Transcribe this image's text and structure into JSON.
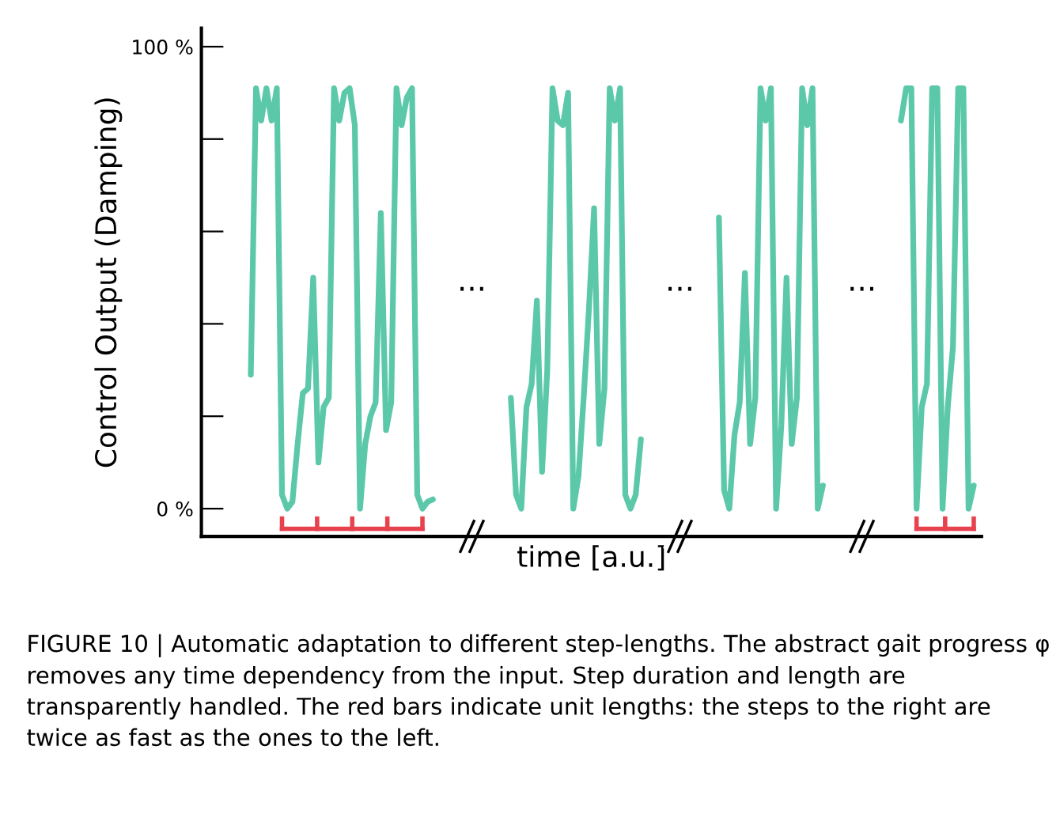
{
  "chart_data": {
    "type": "line",
    "xlabel": "time [a.u.]",
    "ylabel": "Control Output (Damping)",
    "categories": [
      null,
      null,
      null,
      null,
      null,
      null,
      null,
      null,
      null,
      null,
      null,
      null,
      null,
      null,
      null,
      null,
      null,
      null,
      null,
      null,
      null,
      null,
      null,
      null,
      null,
      null,
      null,
      null,
      null,
      null,
      null,
      null,
      null,
      null,
      null,
      null,
      null,
      null,
      null,
      null,
      null,
      null,
      null,
      null,
      null,
      null,
      null,
      null,
      null,
      null,
      null,
      null,
      null,
      null,
      null,
      null,
      null,
      null,
      null,
      null,
      null,
      null,
      null,
      null,
      null,
      null,
      null,
      null,
      null,
      null,
      null,
      null,
      null,
      null,
      null,
      null,
      null,
      null,
      null,
      null,
      null,
      null,
      null,
      null,
      null,
      null,
      null,
      null,
      null,
      null,
      null,
      null,
      null,
      null,
      null,
      null,
      null,
      null,
      null,
      null,
      null,
      null,
      null,
      null,
      null,
      null,
      null,
      null,
      null,
      null,
      null,
      null,
      null,
      null,
      null,
      null,
      null,
      null,
      null,
      null,
      null,
      null,
      null,
      null,
      null,
      null,
      null,
      null,
      null,
      null,
      null,
      null,
      null,
      null,
      null,
      null,
      null,
      null,
      null,
      null,
      null,
      null,
      null,
      null,
      null,
      null,
      null,
      null,
      null,
      null
    ],
    "ylim": [
      -6,
      104
    ],
    "yticks": [
      {
        "value": 0,
        "label": "0 %"
      },
      {
        "value": 20,
        "label": null
      },
      {
        "value": 40,
        "label": null
      },
      {
        "value": 60,
        "label": null
      },
      {
        "value": 80,
        "label": null
      },
      {
        "value": 100,
        "label": "100 %"
      }
    ],
    "tick_labels": "y",
    "grid": false,
    "legend": false,
    "marker": "none",
    "line_style": "solid",
    "series": [
      {
        "color": "#5cc8aa",
        "values": [
          null,
          null,
          null,
          null,
          null,
          null,
          null,
          null,
          null,
          29,
          91,
          84,
          91,
          84,
          91,
          3,
          0,
          1.5,
          14,
          25,
          26,
          50,
          10,
          22,
          24,
          91,
          84,
          90,
          91,
          83,
          0,
          14,
          20,
          23,
          64,
          17,
          23,
          91,
          83,
          89,
          91,
          3,
          0,
          1.5,
          2,
          null,
          null,
          null,
          null,
          null,
          null,
          null,
          null,
          null,
          null,
          null,
          null,
          null,
          null,
          null,
          null,
          null,
          null,
          null,
          null,
          null,
          null,
          null,
          null,
          null,
          null,
          null,
          null,
          null,
          null,
          null,
          null,
          null,
          null,
          null,
          null,
          null,
          null,
          null,
          null,
          null,
          null,
          null,
          null,
          null,
          null,
          null,
          null,
          null,
          null,
          null,
          null,
          null,
          null,
          null,
          null,
          null,
          null,
          null,
          null,
          null,
          null,
          null,
          null,
          null,
          null,
          null,
          null,
          null,
          null,
          null,
          null,
          null,
          null,
          null,
          null,
          null,
          null,
          null,
          null,
          null,
          null,
          null,
          null,
          null,
          null,
          null,
          null,
          null,
          null,
          null,
          null,
          null,
          null,
          null,
          null,
          null,
          null,
          null,
          null,
          null,
          null,
          null,
          null,
          null
        ]
      },
      {
        "color": "#5cc8aa",
        "values": [
          null,
          null,
          null,
          null,
          null,
          null,
          null,
          null,
          null,
          null,
          null,
          null,
          null,
          null,
          null,
          null,
          null,
          null,
          null,
          null,
          null,
          null,
          null,
          null,
          null,
          null,
          null,
          null,
          null,
          null,
          null,
          null,
          null,
          null,
          null,
          null,
          null,
          null,
          null,
          null,
          null,
          null,
          null,
          null,
          null,
          null,
          null,
          null,
          null,
          null,
          null,
          null,
          null,
          null,
          null,
          null,
          null,
          null,
          null,
          24,
          3,
          0,
          22,
          27,
          45,
          8,
          30,
          91,
          84,
          83,
          90,
          0,
          7,
          24,
          43,
          65,
          14,
          26,
          91,
          84,
          91,
          3,
          0,
          3,
          15,
          null,
          null,
          null,
          null,
          null,
          null,
          null,
          null,
          null,
          null,
          null,
          null,
          null,
          null,
          null,
          null,
          null,
          null,
          null,
          null,
          null,
          null,
          null,
          null,
          null,
          null,
          null,
          null,
          null,
          null,
          null,
          null,
          null,
          null,
          null,
          null,
          null,
          null,
          null,
          null,
          null,
          null,
          null,
          null,
          null,
          null,
          null,
          null,
          null,
          null,
          null,
          null,
          null,
          null,
          null,
          null,
          null,
          null,
          null,
          null,
          null,
          null,
          null,
          null,
          null
        ]
      },
      {
        "color": "#5cc8aa",
        "values": [
          null,
          null,
          null,
          null,
          null,
          null,
          null,
          null,
          null,
          null,
          null,
          null,
          null,
          null,
          null,
          null,
          null,
          null,
          null,
          null,
          null,
          null,
          null,
          null,
          null,
          null,
          null,
          null,
          null,
          null,
          null,
          null,
          null,
          null,
          null,
          null,
          null,
          null,
          null,
          null,
          null,
          null,
          null,
          null,
          null,
          null,
          null,
          null,
          null,
          null,
          null,
          null,
          null,
          null,
          null,
          null,
          null,
          null,
          null,
          null,
          null,
          null,
          null,
          null,
          null,
          null,
          null,
          null,
          null,
          null,
          null,
          null,
          null,
          null,
          null,
          null,
          null,
          null,
          null,
          null,
          null,
          null,
          null,
          null,
          null,
          null,
          null,
          null,
          null,
          null,
          null,
          null,
          null,
          null,
          null,
          null,
          null,
          null,
          null,
          63,
          4,
          0,
          16,
          23,
          51,
          14,
          24,
          91,
          84,
          91,
          0,
          18,
          50,
          14,
          24,
          91,
          83,
          91,
          0,
          5,
          null,
          null,
          null,
          null,
          null,
          null,
          null,
          null,
          null,
          null,
          null,
          null,
          null,
          null,
          null,
          null,
          null,
          null,
          null,
          null,
          null,
          null,
          null,
          null,
          null,
          null,
          null,
          null,
          null,
          null
        ]
      },
      {
        "color": "#5cc8aa",
        "values": [
          null,
          null,
          null,
          null,
          null,
          null,
          null,
          null,
          null,
          null,
          null,
          null,
          null,
          null,
          null,
          null,
          null,
          null,
          null,
          null,
          null,
          null,
          null,
          null,
          null,
          null,
          null,
          null,
          null,
          null,
          null,
          null,
          null,
          null,
          null,
          null,
          null,
          null,
          null,
          null,
          null,
          null,
          null,
          null,
          null,
          null,
          null,
          null,
          null,
          null,
          null,
          null,
          null,
          null,
          null,
          null,
          null,
          null,
          null,
          null,
          null,
          null,
          null,
          null,
          null,
          null,
          null,
          null,
          null,
          null,
          null,
          null,
          null,
          null,
          null,
          null,
          null,
          null,
          null,
          null,
          null,
          null,
          null,
          null,
          null,
          null,
          null,
          null,
          null,
          null,
          null,
          null,
          null,
          null,
          null,
          null,
          null,
          null,
          null,
          null,
          null,
          null,
          null,
          null,
          null,
          null,
          null,
          null,
          null,
          null,
          null,
          null,
          null,
          null,
          null,
          null,
          null,
          null,
          null,
          null,
          null,
          null,
          null,
          null,
          null,
          null,
          null,
          null,
          null,
          null,
          null,
          null,
          null,
          null,
          84,
          91,
          91,
          0,
          22,
          27,
          91,
          91,
          0,
          22,
          35,
          91,
          91,
          0,
          5,
          null
        ]
      }
    ],
    "annotations": [
      "...",
      "...",
      "...",
      "FIGURE 10 | Automatic adaptation to different step-lengths. The abstract gait progress φ removes any time dependency from the input. Step duration and length are transparently handled. The red bars indicate unit lengths: the steps to the right are twice as fast as the ones to the left."
    ]
  }
}
